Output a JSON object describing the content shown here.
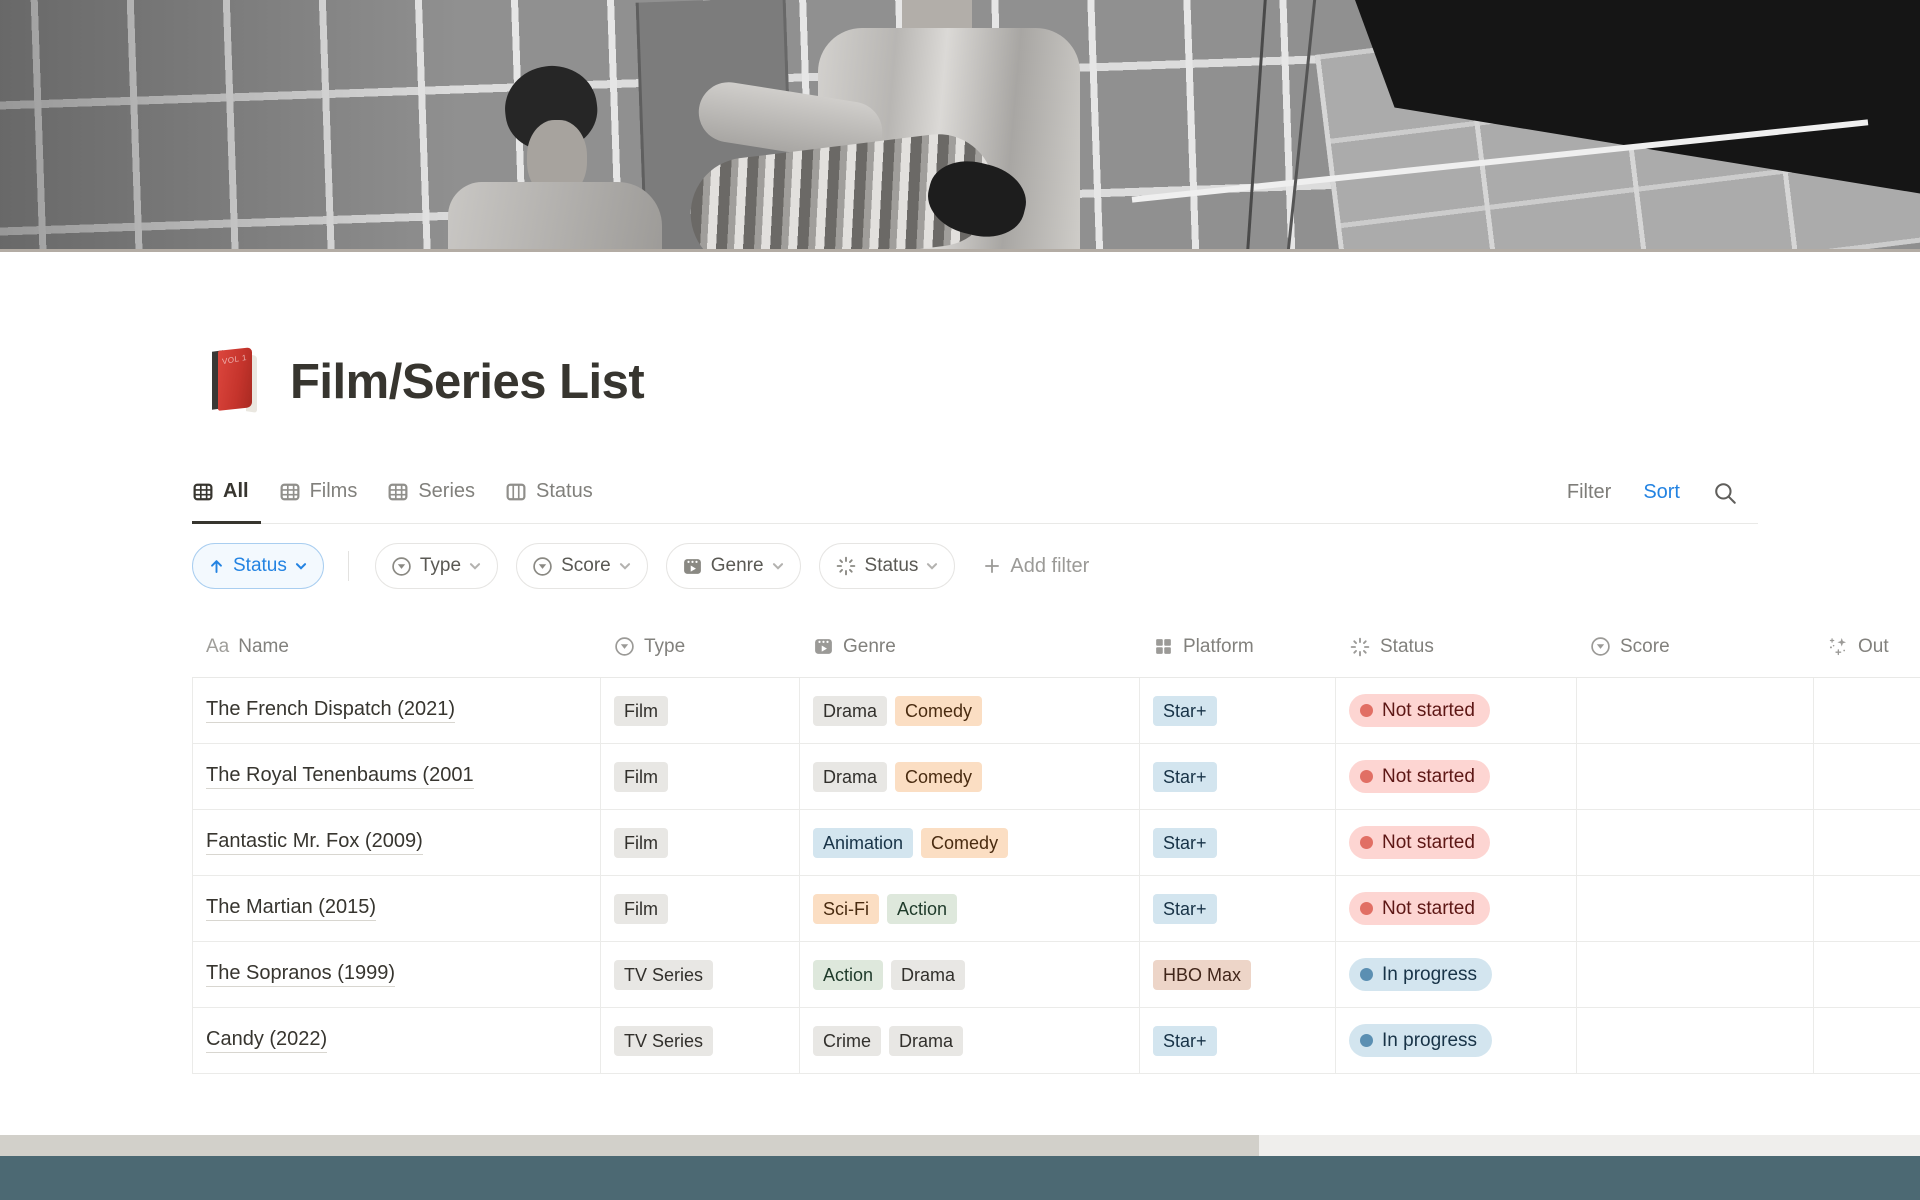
{
  "page": {
    "title": "Film/Series List",
    "icon_label": "VOL 1"
  },
  "tabs": {
    "items": [
      {
        "label": "All",
        "icon": "table-view-icon",
        "active": true
      },
      {
        "label": "Films",
        "icon": "table-view-icon",
        "active": false
      },
      {
        "label": "Series",
        "icon": "table-view-icon",
        "active": false
      },
      {
        "label": "Status",
        "icon": "board-view-icon",
        "active": false
      }
    ]
  },
  "toolbar": {
    "filter": "Filter",
    "sort": "Sort",
    "search_icon": "magnifier-icon"
  },
  "filters": {
    "sort_rule": {
      "label": "Status",
      "direction": "ascending"
    },
    "property_chips": [
      {
        "label": "Type",
        "icon": "select-property-icon"
      },
      {
        "label": "Score",
        "icon": "select-property-icon"
      },
      {
        "label": "Genre",
        "icon": "film-property-icon"
      },
      {
        "label": "Status",
        "icon": "status-property-icon"
      }
    ],
    "add_filter": "Add filter"
  },
  "table": {
    "columns": [
      {
        "label": "Name",
        "icon": "text-property-icon"
      },
      {
        "label": "Type",
        "icon": "select-property-icon"
      },
      {
        "label": "Genre",
        "icon": "film-property-icon"
      },
      {
        "label": "Platform",
        "icon": "multi-select-property-icon"
      },
      {
        "label": "Status",
        "icon": "status-property-icon"
      },
      {
        "label": "Score",
        "icon": "select-property-icon"
      },
      {
        "label": "Out",
        "icon": "ai-sparkles-icon"
      }
    ],
    "rows": [
      {
        "name": "The French Dispatch (2021)",
        "type": {
          "label": "Film",
          "color": "gray"
        },
        "genre": [
          {
            "label": "Drama",
            "color": "gray"
          },
          {
            "label": "Comedy",
            "color": "orange"
          }
        ],
        "platform": {
          "label": "Star+",
          "color": "blue"
        },
        "status": {
          "label": "Not started",
          "color": "red"
        },
        "score": ""
      },
      {
        "name": "The Royal Tenenbaums (2001",
        "type": {
          "label": "Film",
          "color": "gray"
        },
        "genre": [
          {
            "label": "Drama",
            "color": "gray"
          },
          {
            "label": "Comedy",
            "color": "orange"
          }
        ],
        "platform": {
          "label": "Star+",
          "color": "blue"
        },
        "status": {
          "label": "Not started",
          "color": "red"
        },
        "score": ""
      },
      {
        "name": "Fantastic Mr. Fox (2009)",
        "type": {
          "label": "Film",
          "color": "gray"
        },
        "genre": [
          {
            "label": "Animation",
            "color": "blue"
          },
          {
            "label": "Comedy",
            "color": "orange"
          }
        ],
        "platform": {
          "label": "Star+",
          "color": "blue"
        },
        "status": {
          "label": "Not started",
          "color": "red"
        },
        "score": ""
      },
      {
        "name": "The Martian (2015)",
        "type": {
          "label": "Film",
          "color": "gray"
        },
        "genre": [
          {
            "label": "Sci-Fi",
            "color": "orange"
          },
          {
            "label": "Action",
            "color": "green"
          }
        ],
        "platform": {
          "label": "Star+",
          "color": "blue"
        },
        "status": {
          "label": "Not started",
          "color": "red"
        },
        "score": ""
      },
      {
        "name": "The Sopranos (1999)",
        "type": {
          "label": "TV Series",
          "color": "gray"
        },
        "genre": [
          {
            "label": "Action",
            "color": "green"
          },
          {
            "label": "Drama",
            "color": "gray"
          }
        ],
        "platform": {
          "label": "HBO Max",
          "color": "brown"
        },
        "status": {
          "label": "In progress",
          "color": "statusblue"
        },
        "score": ""
      },
      {
        "name": "Candy (2022)",
        "type": {
          "label": "TV Series",
          "color": "gray"
        },
        "genre": [
          {
            "label": "Crime",
            "color": "gray"
          },
          {
            "label": "Drama",
            "color": "gray"
          }
        ],
        "platform": {
          "label": "Star+",
          "color": "blue"
        },
        "status": {
          "label": "In progress",
          "color": "statusblue"
        },
        "score": ""
      }
    ]
  },
  "colors": {
    "accent_blue": "#2383e2",
    "footer_teal": "#4c6973",
    "scrollbar_thumb": "#d2d0ca",
    "scrollbar_track": "#efeeec",
    "tags": {
      "gray": {
        "bg": "#e8e7e4",
        "text": "#32302c"
      },
      "orange": {
        "bg": "#fbdec3",
        "text": "#492b10"
      },
      "blue": {
        "bg": "#d3e5ef",
        "text": "#183347"
      },
      "green": {
        "bg": "#dee8dc",
        "text": "#1e3a2a"
      },
      "brown": {
        "bg": "#edd5c8",
        "text": "#41261a"
      }
    },
    "status": {
      "red": {
        "bg": "#fdd5d2",
        "dot": "#e16f64",
        "text": "#5d1715"
      },
      "statusblue": {
        "bg": "#d3e5ef",
        "dot": "#5b8fb2",
        "text": "#183347"
      }
    }
  }
}
